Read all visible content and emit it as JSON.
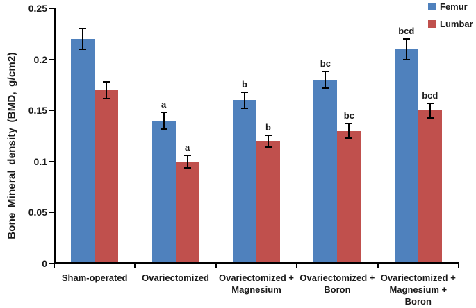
{
  "chart_data": {
    "type": "bar",
    "title": "",
    "xlabel": "",
    "ylabel": "Bone Mineral density (BMD, g/cm2)",
    "ylim": [
      0,
      0.25
    ],
    "yticks": [
      0,
      0.05,
      0.1,
      0.15,
      0.2,
      0.25
    ],
    "ytick_labels": [
      "0",
      "0.05",
      "0.1",
      "0.15",
      "0.2",
      "0.25"
    ],
    "categories": [
      "Sham-operated",
      "Ovariectomized",
      "Ovariectomized +\nMagnesium",
      "Ovariectomized +\nBoron",
      "Ovariectomized +\nMagnesium +\nBoron"
    ],
    "grid": false,
    "legend_position": "top-right",
    "error_bar_color": "#000000",
    "axis_color": "#000000",
    "text_color": "#1a1a1a",
    "series": [
      {
        "name": "Femur",
        "color": "#4F81BD",
        "values": [
          0.22,
          0.14,
          0.16,
          0.18,
          0.21
        ],
        "errors": [
          0.01,
          0.008,
          0.008,
          0.008,
          0.01
        ],
        "sig_labels": [
          "",
          "a",
          "b",
          "bc",
          "bcd"
        ]
      },
      {
        "name": "Lumbar",
        "color": "#C0504D",
        "values": [
          0.17,
          0.1,
          0.12,
          0.13,
          0.15
        ],
        "errors": [
          0.008,
          0.006,
          0.006,
          0.007,
          0.007
        ],
        "sig_labels": [
          "",
          "a",
          "b",
          "bc",
          "bcd"
        ]
      }
    ]
  }
}
